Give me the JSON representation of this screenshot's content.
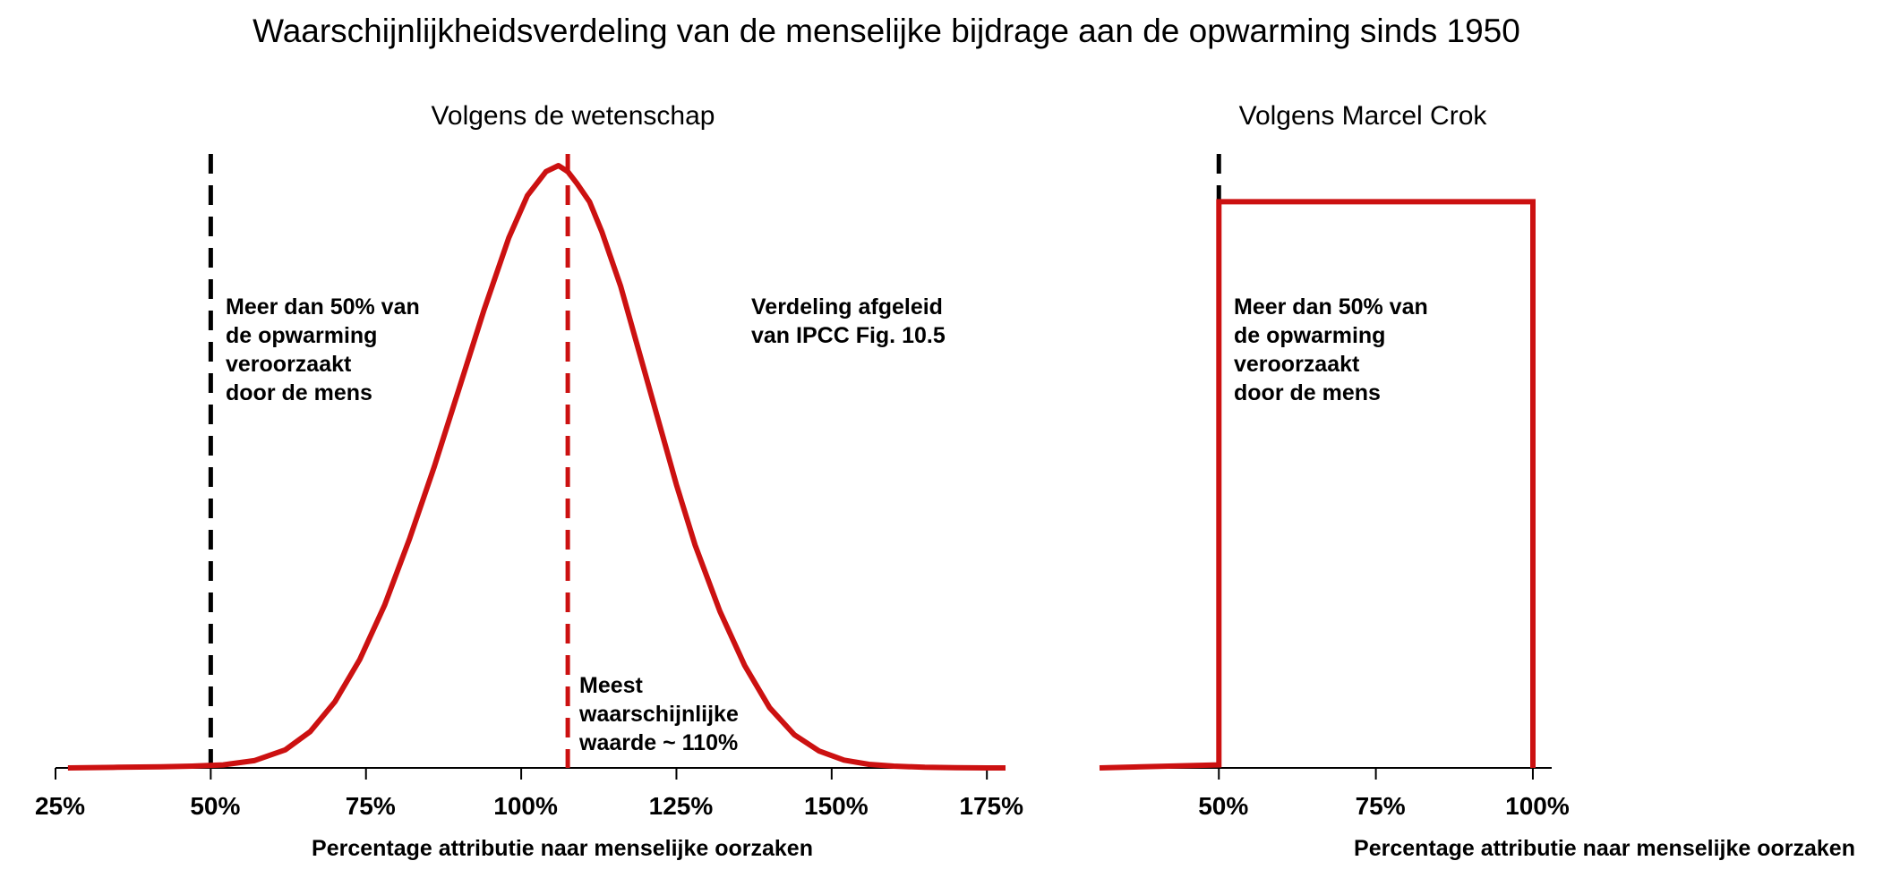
{
  "title": "Waarschijnlijkheidsverdeling van de menselijke bijdrage aan de opwarming sinds 1950",
  "colors": {
    "curve": "#cc1111",
    "threshold": "#000000",
    "axis": "#000000"
  },
  "chart_data": [
    {
      "type": "line",
      "title": "Volgens de wetenschap",
      "xlabel": "Percentage attributie naar menselijke oorzaken",
      "ylabel": "",
      "xlim": [
        25,
        178
      ],
      "ylim": [
        0,
        1
      ],
      "x_ticks": [
        25,
        50,
        75,
        100,
        125,
        150,
        175
      ],
      "x_tick_labels": [
        "25%",
        "50%",
        "75%",
        "100%",
        "125%",
        "150%",
        "175%"
      ],
      "series": [
        {
          "x": [
            27,
            35,
            42,
            47,
            52,
            57,
            62,
            66,
            70,
            74,
            78,
            82,
            86,
            90,
            94,
            98,
            101,
            104,
            106,
            107.5,
            109,
            111,
            113,
            116,
            119,
            122,
            125,
            128,
            132,
            136,
            140,
            144,
            148,
            152,
            156,
            160,
            165,
            170,
            175,
            178
          ],
          "y": [
            0.0,
            0.001,
            0.002,
            0.003,
            0.005,
            0.012,
            0.03,
            0.06,
            0.11,
            0.18,
            0.27,
            0.38,
            0.5,
            0.63,
            0.76,
            0.88,
            0.95,
            0.99,
            1.0,
            0.99,
            0.97,
            0.94,
            0.89,
            0.8,
            0.69,
            0.58,
            0.47,
            0.37,
            0.26,
            0.17,
            0.1,
            0.055,
            0.028,
            0.013,
            0.006,
            0.003,
            0.001,
            0.0005,
            0.0,
            0.0
          ]
        }
      ],
      "reference_lines": [
        {
          "x": 50,
          "color": "#000000",
          "style": "dashed"
        },
        {
          "x": 107.5,
          "color": "#cc1111",
          "style": "dashed"
        }
      ],
      "annotations": [
        {
          "lines": [
            "Meer dan 50% van",
            "de opwarming",
            "veroorzaakt",
            "door de mens"
          ]
        },
        {
          "lines": [
            "Meest",
            "waarschijnlijke",
            "waarde ~ 110%"
          ]
        },
        {
          "lines": [
            "Verdeling afgeleid",
            "van IPCC Fig. 10.5"
          ]
        }
      ]
    },
    {
      "type": "line",
      "title": "Volgens Marcel Crok",
      "xlabel": "Percentage attributie naar menselijke oorzaken",
      "ylabel": "",
      "xlim": [
        31,
        103
      ],
      "ylim": [
        0,
        1
      ],
      "x_ticks": [
        50,
        75,
        100
      ],
      "x_tick_labels": [
        "50%",
        "75%",
        "100%"
      ],
      "series": [
        {
          "x": [
            31,
            50,
            50,
            100,
            100
          ],
          "y": [
            0,
            0.005,
            0.94,
            0.94,
            0
          ]
        }
      ],
      "reference_lines": [
        {
          "x": 50,
          "color": "#000000",
          "style": "dashed"
        }
      ],
      "annotations": [
        {
          "lines": [
            "Meer dan 50% van",
            "de opwarming",
            "veroorzaakt",
            "door de mens"
          ]
        }
      ]
    }
  ]
}
